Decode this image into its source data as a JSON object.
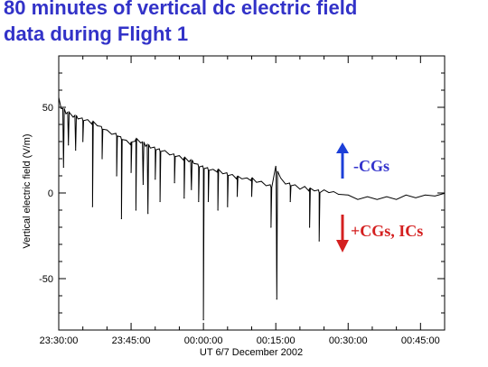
{
  "slide": {
    "title_line1": "80 minutes of vertical dc electric field",
    "title_line2": "data during Flight 1"
  },
  "chart_data": {
    "type": "line",
    "title": "80 minutes of vertical dc electric field data during Flight 1",
    "xlabel": "UT 6/7 December 2002",
    "ylabel": "Vertical electric field (V/m)",
    "x_unit": "minutes after 23:30:00 UT",
    "xlim": [
      0,
      80
    ],
    "ylim": [
      -80,
      80
    ],
    "xticks": [
      {
        "value": 0,
        "label": "23:30:00"
      },
      {
        "value": 15,
        "label": "23:45:00"
      },
      {
        "value": 30,
        "label": "00:00:00"
      },
      {
        "value": 45,
        "label": "00:15:00"
      },
      {
        "value": 60,
        "label": "00:30:00"
      },
      {
        "value": 75,
        "label": "00:45:00"
      }
    ],
    "yticks": [
      {
        "value": 50,
        "label": "50"
      },
      {
        "value": 0,
        "label": "0"
      },
      {
        "value": -50,
        "label": "-50"
      }
    ],
    "grid": false,
    "series": [
      {
        "color": "#000000",
        "baseline": {
          "x": [
            0,
            0.5,
            1.5,
            3,
            4,
            5,
            6,
            7,
            8,
            9,
            10,
            11,
            12,
            13,
            14,
            15,
            16,
            17,
            18,
            19,
            20,
            21,
            22,
            23,
            24,
            25,
            26,
            27,
            28,
            29,
            30,
            31,
            32,
            33,
            34,
            35,
            36,
            37,
            38,
            39,
            40,
            41,
            42,
            43,
            44,
            45,
            46,
            47,
            48,
            49,
            50,
            51,
            52,
            53,
            54,
            55,
            56,
            57,
            58,
            60,
            62,
            64,
            66,
            68,
            70,
            72,
            74,
            76,
            78,
            80
          ],
          "y": [
            55,
            50,
            47,
            45,
            44,
            43,
            42,
            41,
            40,
            38,
            36,
            35,
            34,
            32,
            30,
            29,
            31,
            30,
            28,
            27,
            26,
            25,
            24,
            23,
            22,
            21,
            20,
            19,
            18,
            16,
            15,
            14,
            13,
            13,
            12,
            11,
            10,
            9,
            9,
            8,
            8,
            7,
            6,
            5,
            4,
            15,
            8,
            6,
            5,
            4,
            3,
            3,
            2,
            2,
            1,
            1,
            1,
            0,
            0,
            -2,
            -3,
            -3,
            -3,
            -3,
            -3,
            -2,
            -2,
            -2,
            -1,
            -1
          ]
        },
        "spikes": [
          {
            "x": 1,
            "y": 15
          },
          {
            "x": 2,
            "y": 28
          },
          {
            "x": 3.5,
            "y": 25
          },
          {
            "x": 5,
            "y": 30
          },
          {
            "x": 7,
            "y": -8
          },
          {
            "x": 9,
            "y": 20
          },
          {
            "x": 12,
            "y": 10
          },
          {
            "x": 13,
            "y": -15
          },
          {
            "x": 15,
            "y": 12
          },
          {
            "x": 16,
            "y": -10
          },
          {
            "x": 17.5,
            "y": 5
          },
          {
            "x": 18.5,
            "y": -12
          },
          {
            "x": 20,
            "y": 8
          },
          {
            "x": 21,
            "y": -5
          },
          {
            "x": 24,
            "y": 6
          },
          {
            "x": 26,
            "y": -3
          },
          {
            "x": 27.5,
            "y": 2
          },
          {
            "x": 29,
            "y": -5
          },
          {
            "x": 30,
            "y": -74
          },
          {
            "x": 31,
            "y": -5
          },
          {
            "x": 33,
            "y": -10
          },
          {
            "x": 35,
            "y": -8
          },
          {
            "x": 37,
            "y": -2
          },
          {
            "x": 40,
            "y": -2
          },
          {
            "x": 44,
            "y": -20
          },
          {
            "x": 45.2,
            "y": -62
          },
          {
            "x": 48,
            "y": -5
          },
          {
            "x": 52,
            "y": -20
          },
          {
            "x": 54,
            "y": -28
          }
        ]
      }
    ],
    "annotations": [
      {
        "text": "-CGs",
        "arrow": "up",
        "color_text": "#3333cc",
        "color_arrow": "#1c3fd8"
      },
      {
        "text": "+CGs, ICs",
        "arrow": "down",
        "color_text": "#d42020",
        "color_arrow": "#d42020"
      }
    ]
  }
}
